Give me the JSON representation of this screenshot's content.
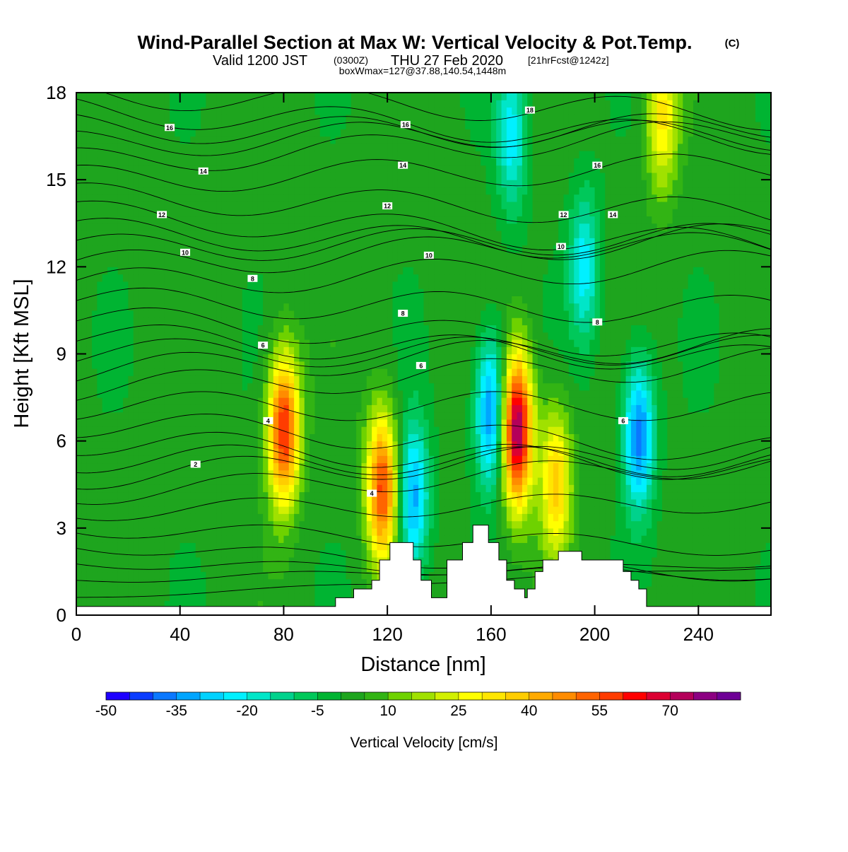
{
  "title": {
    "main": "Wind-Parallel Section at Max W: Vertical Velocity & Pot.Temp.",
    "unit": "(C)",
    "valid_prefix": "Valid 1200 JST",
    "valid_utc": "(0300Z)",
    "valid_date": "THU 27 Feb 2020",
    "forecast": "[21hrFcst@1242z]",
    "box": "boxWmax=127@37.88,140.54,1448m"
  },
  "chart_data": {
    "type": "heatmap",
    "xlabel": "Distance [nm]",
    "ylabel": "Height [Kft MSL]",
    "xlim": [
      0,
      268
    ],
    "ylim": [
      0,
      18
    ],
    "x_ticks": [
      "0",
      "40",
      "80",
      "120",
      "160",
      "200",
      "240"
    ],
    "y_ticks": [
      "0",
      "3",
      "6",
      "9",
      "12",
      "15",
      "18"
    ],
    "colorbar": {
      "label": "Vertical Velocity [cm/s]",
      "tick_labels": [
        "-50",
        "-35",
        "-20",
        "-5",
        "10",
        "25",
        "40",
        "55",
        "70"
      ],
      "levels_start": -50,
      "level_step": 5,
      "colors": [
        "#1e00ff",
        "#0a3cff",
        "#0a78ff",
        "#00a5ff",
        "#00d2ff",
        "#00f0ff",
        "#00e6c8",
        "#00d28c",
        "#00c85a",
        "#00b432",
        "#1ea51e",
        "#32b414",
        "#6ed200",
        "#a0e100",
        "#d2f000",
        "#ffff00",
        "#ffe600",
        "#ffcd00",
        "#ffaa00",
        "#ff8c00",
        "#ff6400",
        "#ff3c00",
        "#ff0000",
        "#dc0032",
        "#b4005a",
        "#8c0082",
        "#6e0096"
      ]
    },
    "updraft_cores": [
      {
        "x": 80,
        "y": 6.4,
        "w_cm_s": 60
      },
      {
        "x": 118,
        "y": 4.4,
        "w_cm_s": 55
      },
      {
        "x": 170,
        "y": 6.4,
        "w_cm_s": 75
      },
      {
        "x": 185,
        "y": 4.6,
        "w_cm_s": 35
      },
      {
        "x": 226,
        "y": 17.2,
        "w_cm_s": 30
      }
    ],
    "downdraft_cores": [
      {
        "x": 160,
        "y": 7.0,
        "w_cm_s": -40
      },
      {
        "x": 217,
        "y": 6.2,
        "w_cm_s": -40
      },
      {
        "x": 130,
        "y": 4.0,
        "w_cm_s": -35
      },
      {
        "x": 168,
        "y": 16.5,
        "w_cm_s": -25
      },
      {
        "x": 196,
        "y": 12.0,
        "w_cm_s": -25
      }
    ],
    "theta_contour_labels": [
      {
        "text": "2",
        "x": 46,
        "y": 5.2
      },
      {
        "text": "4",
        "x": 74,
        "y": 6.7
      },
      {
        "text": "4",
        "x": 114,
        "y": 4.2
      },
      {
        "text": "6",
        "x": 72,
        "y": 9.3
      },
      {
        "text": "6",
        "x": 133,
        "y": 8.6
      },
      {
        "text": "6",
        "x": 211,
        "y": 6.7
      },
      {
        "text": "8",
        "x": 68,
        "y": 11.6
      },
      {
        "text": "8",
        "x": 126,
        "y": 10.4
      },
      {
        "text": "8",
        "x": 201,
        "y": 10.1
      },
      {
        "text": "10",
        "x": 42,
        "y": 12.5
      },
      {
        "text": "10",
        "x": 136,
        "y": 12.4
      },
      {
        "text": "10",
        "x": 187,
        "y": 12.7
      },
      {
        "text": "12",
        "x": 33,
        "y": 13.8
      },
      {
        "text": "12",
        "x": 120,
        "y": 14.1
      },
      {
        "text": "12",
        "x": 188,
        "y": 13.8
      },
      {
        "text": "14",
        "x": 49,
        "y": 15.3
      },
      {
        "text": "14",
        "x": 126,
        "y": 15.5
      },
      {
        "text": "14",
        "x": 207,
        "y": 13.8
      },
      {
        "text": "16",
        "x": 36,
        "y": 16.8
      },
      {
        "text": "16",
        "x": 127,
        "y": 16.9
      },
      {
        "text": "16",
        "x": 201,
        "y": 15.5
      },
      {
        "text": "18",
        "x": 175,
        "y": 17.4
      }
    ],
    "terrain": [
      [
        0,
        0.3
      ],
      [
        100,
        0.3
      ],
      [
        100,
        0.6
      ],
      [
        107,
        0.6
      ],
      [
        107,
        0.9
      ],
      [
        114,
        0.9
      ],
      [
        114,
        1.2
      ],
      [
        117,
        1.2
      ],
      [
        117,
        1.9
      ],
      [
        121,
        1.9
      ],
      [
        121,
        2.5
      ],
      [
        130,
        2.5
      ],
      [
        130,
        1.9
      ],
      [
        133,
        1.9
      ],
      [
        133,
        1.2
      ],
      [
        137,
        1.2
      ],
      [
        137,
        0.6
      ],
      [
        143,
        0.6
      ],
      [
        143,
        1.9
      ],
      [
        149,
        1.9
      ],
      [
        149,
        2.5
      ],
      [
        153,
        2.5
      ],
      [
        153,
        3.1
      ],
      [
        159,
        3.1
      ],
      [
        159,
        2.5
      ],
      [
        163,
        2.5
      ],
      [
        163,
        1.9
      ],
      [
        166,
        1.9
      ],
      [
        166,
        1.2
      ],
      [
        169,
        1.2
      ],
      [
        169,
        0.9
      ],
      [
        173,
        0.9
      ],
      [
        173,
        0.6
      ],
      [
        174,
        0.6
      ],
      [
        174,
        0.9
      ],
      [
        177,
        0.9
      ],
      [
        177,
        1.5
      ],
      [
        180,
        1.5
      ],
      [
        180,
        1.9
      ],
      [
        186,
        1.9
      ],
      [
        186,
        2.2
      ],
      [
        195,
        2.2
      ],
      [
        195,
        1.9
      ],
      [
        211,
        1.9
      ],
      [
        211,
        1.5
      ],
      [
        214,
        1.5
      ],
      [
        214,
        1.2
      ],
      [
        217,
        1.2
      ],
      [
        217,
        0.9
      ],
      [
        220,
        0.9
      ],
      [
        220,
        0.3
      ],
      [
        268,
        0.3
      ]
    ]
  }
}
